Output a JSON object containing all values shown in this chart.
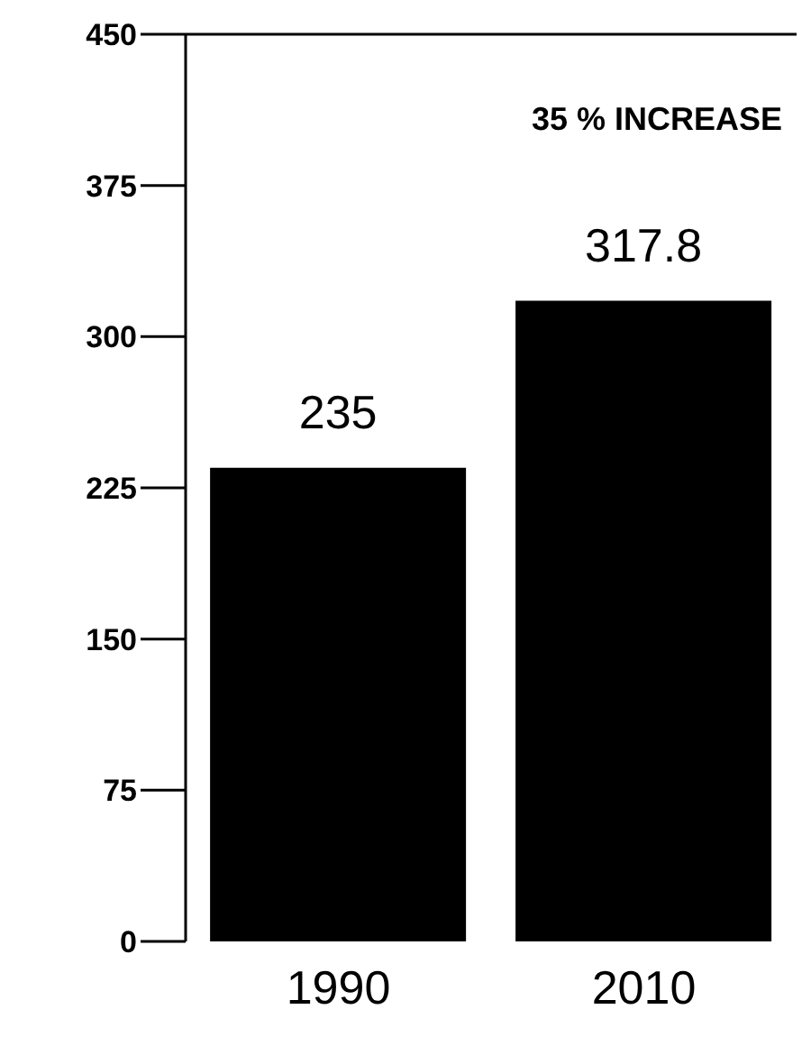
{
  "chart_data": {
    "type": "bar",
    "categories": [
      "1990",
      "2010"
    ],
    "values": [
      235,
      317.8
    ],
    "color": "#000000",
    "ylim": [
      0,
      450
    ],
    "yticks": [
      0,
      75,
      150,
      225,
      300,
      375,
      450
    ],
    "data_labels": true,
    "annotations": [
      "35 % INCREASE"
    ]
  }
}
